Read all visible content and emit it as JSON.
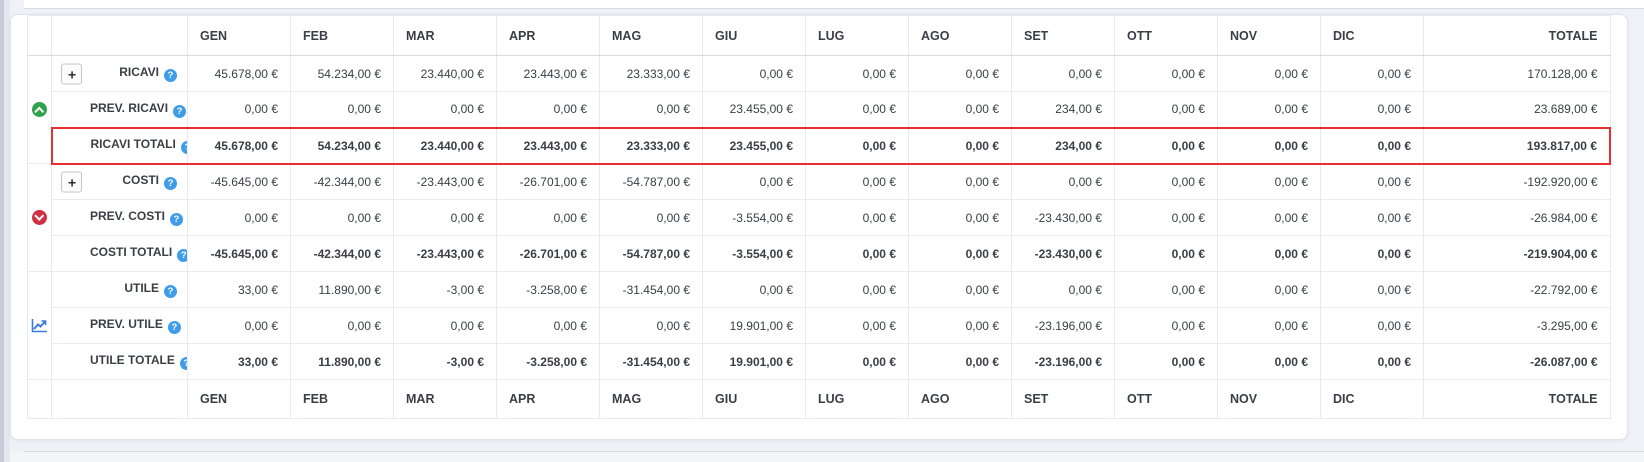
{
  "colors": {
    "positive": "#43a653",
    "negative": "#ea5160",
    "highlight_border": "#e82e2e",
    "help_icon_bg": "#3f9ce8",
    "trend_up_bg": "#2fa24c",
    "trend_down_bg": "#d22f45",
    "chart_icon": "#3b7be0"
  },
  "icons": {
    "help_glyph": "?",
    "expand_button_label": "+"
  },
  "table": {
    "months": [
      "GEN",
      "FEB",
      "MAR",
      "APR",
      "MAG",
      "GIU",
      "LUG",
      "AGO",
      "SET",
      "OTT",
      "NOV",
      "DIC"
    ],
    "total_label": "TOTALE",
    "rows": [
      {
        "id": "ricavi",
        "label": "RICAVI",
        "expandable": true,
        "group_icon": "trend-up-circle-icon",
        "values": [
          "45.678,00 €",
          "54.234,00 €",
          "23.440,00 €",
          "23.443,00 €",
          "23.333,00 €",
          "0,00 €",
          "0,00 €",
          "0,00 €",
          "0,00 €",
          "0,00 €",
          "0,00 €",
          "0,00 €"
        ],
        "colors": "gggggggggggg",
        "total": "170.128,00 €",
        "total_color": "g",
        "highlight": false,
        "bold": false
      },
      {
        "id": "prev-ricavi",
        "label": "PREV. RICAVI",
        "expandable": false,
        "values": [
          "0,00 €",
          "0,00 €",
          "0,00 €",
          "0,00 €",
          "0,00 €",
          "23.455,00 €",
          "0,00 €",
          "0,00 €",
          "234,00 €",
          "0,00 €",
          "0,00 €",
          "0,00 €"
        ],
        "colors": "gggggggggggg",
        "total": "23.689,00 €",
        "total_color": "g",
        "highlight": false,
        "bold": false
      },
      {
        "id": "ricavi-totali",
        "label": "RICAVI TOTALI",
        "expandable": false,
        "values": [
          "45.678,00 €",
          "54.234,00 €",
          "23.440,00 €",
          "23.443,00 €",
          "23.333,00 €",
          "23.455,00 €",
          "0,00 €",
          "0,00 €",
          "234,00 €",
          "0,00 €",
          "0,00 €",
          "0,00 €"
        ],
        "colors": "gggggggggggg",
        "total": "193.817,00 €",
        "total_color": "g",
        "highlight": true,
        "bold": true
      },
      {
        "id": "costi",
        "label": "COSTI",
        "expandable": true,
        "group_icon": "trend-down-circle-icon",
        "values": [
          "-45.645,00 €",
          "-42.344,00 €",
          "-23.443,00 €",
          "-26.701,00 €",
          "-54.787,00 €",
          "0,00 €",
          "0,00 €",
          "0,00 €",
          "0,00 €",
          "0,00 €",
          "0,00 €",
          "0,00 €"
        ],
        "colors": "rrrrrrrrrrrr",
        "total": "-192.920,00 €",
        "total_color": "r",
        "highlight": false,
        "bold": false
      },
      {
        "id": "prev-costi",
        "label": "PREV. COSTI",
        "expandable": false,
        "values": [
          "0,00 €",
          "0,00 €",
          "0,00 €",
          "0,00 €",
          "0,00 €",
          "-3.554,00 €",
          "0,00 €",
          "0,00 €",
          "-23.430,00 €",
          "0,00 €",
          "0,00 €",
          "0,00 €"
        ],
        "colors": "rrrrrrrrrrrr",
        "total": "-26.984,00 €",
        "total_color": "r",
        "highlight": false,
        "bold": false
      },
      {
        "id": "costi-totali",
        "label": "COSTI TOTALI",
        "expandable": false,
        "values": [
          "-45.645,00 €",
          "-42.344,00 €",
          "-23.443,00 €",
          "-26.701,00 €",
          "-54.787,00 €",
          "-3.554,00 €",
          "0,00 €",
          "0,00 €",
          "-23.430,00 €",
          "0,00 €",
          "0,00 €",
          "0,00 €"
        ],
        "colors": "rrrrrrrrrrrr",
        "total": "-219.904,00 €",
        "total_color": "r",
        "highlight": false,
        "bold": true
      },
      {
        "id": "utile",
        "label": "UTILE",
        "expandable": false,
        "group_icon": "chart-line-icon",
        "values": [
          "33,00 €",
          "11.890,00 €",
          "-3,00 €",
          "-3.258,00 €",
          "-31.454,00 €",
          "0,00 €",
          "0,00 €",
          "0,00 €",
          "0,00 €",
          "0,00 €",
          "0,00 €",
          "0,00 €"
        ],
        "colors": "ggrrrggggggg",
        "total": "-22.792,00 €",
        "total_color": "g",
        "highlight": false,
        "bold": false
      },
      {
        "id": "prev-utile",
        "label": "PREV. UTILE",
        "expandable": false,
        "values": [
          "0,00 €",
          "0,00 €",
          "0,00 €",
          "0,00 €",
          "0,00 €",
          "19.901,00 €",
          "0,00 €",
          "0,00 €",
          "-23.196,00 €",
          "0,00 €",
          "0,00 €",
          "0,00 €"
        ],
        "colors": "ggggggggrggg",
        "total": "-3.295,00 €",
        "total_color": "r",
        "highlight": false,
        "bold": false
      },
      {
        "id": "utile-totale",
        "label": "UTILE TOTALE",
        "expandable": false,
        "values": [
          "33,00 €",
          "11.890,00 €",
          "-3,00 €",
          "-3.258,00 €",
          "-31.454,00 €",
          "19.901,00 €",
          "0,00 €",
          "0,00 €",
          "-23.196,00 €",
          "0,00 €",
          "0,00 €",
          "0,00 €"
        ],
        "colors": "ggrrrgggrggg",
        "total": "-26.087,00 €",
        "total_color": "r",
        "highlight": false,
        "bold": true
      }
    ]
  }
}
